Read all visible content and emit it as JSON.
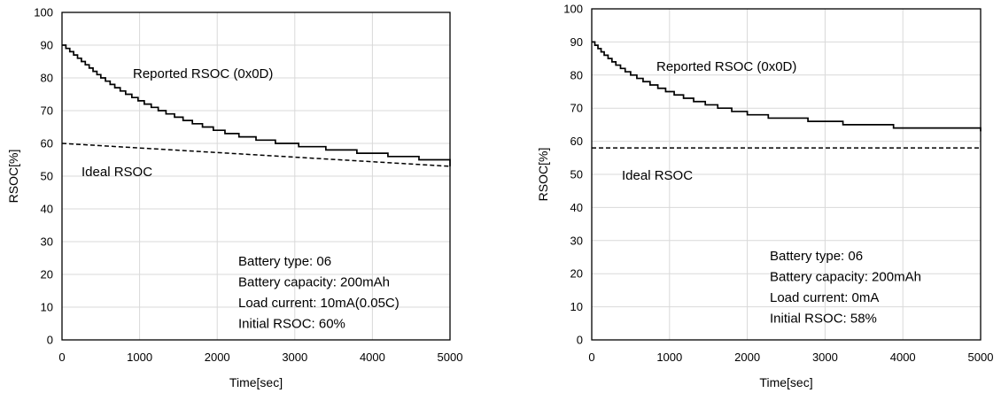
{
  "chart_data": [
    {
      "type": "line",
      "xlabel": "Time[sec]",
      "ylabel": "RSOC[%]",
      "xlim": [
        0,
        5000
      ],
      "ylim": [
        0,
        100
      ],
      "xticks": [
        0,
        1000,
        2000,
        3000,
        4000,
        5000
      ],
      "yticks": [
        0,
        10,
        20,
        30,
        40,
        50,
        60,
        70,
        80,
        90,
        100
      ],
      "grid": true,
      "series": [
        {
          "name": "Reported RSOC (0x0D)",
          "style": "solid-step",
          "x": [
            0,
            50,
            100,
            150,
            200,
            250,
            300,
            350,
            400,
            450,
            500,
            560,
            620,
            680,
            750,
            820,
            900,
            980,
            1060,
            1150,
            1240,
            1340,
            1450,
            1560,
            1680,
            1810,
            1950,
            2100,
            2280,
            2500,
            2750,
            3050,
            3400,
            3800,
            4200,
            4600,
            5000
          ],
          "y": [
            90,
            89,
            88,
            87,
            86,
            85,
            84,
            83,
            82,
            81,
            80,
            79,
            78,
            77,
            76,
            75,
            74,
            73,
            72,
            71,
            70,
            69,
            68,
            67,
            66,
            65,
            64,
            63,
            62,
            61,
            60,
            59,
            58,
            57,
            56,
            55,
            53
          ]
        },
        {
          "name": "Ideal RSOC",
          "style": "dashed",
          "x": [
            0,
            5000
          ],
          "y": [
            60,
            53
          ]
        }
      ],
      "annotations": {
        "reported_label": "Reported RSOC (0x0D)",
        "ideal_label": "Ideal RSOC",
        "info": [
          "Battery type: 06",
          "Battery capacity: 200mAh",
          "Load current: 10mA(0.05C)",
          "Initial RSOC: 60%"
        ]
      }
    },
    {
      "type": "line",
      "xlabel": "Time[sec]",
      "ylabel": "RSOC[%]",
      "xlim": [
        0,
        5000
      ],
      "ylim": [
        0,
        100
      ],
      "xticks": [
        0,
        1000,
        2000,
        3000,
        4000,
        5000
      ],
      "yticks": [
        0,
        10,
        20,
        30,
        40,
        50,
        60,
        70,
        80,
        90,
        100
      ],
      "grid": true,
      "series": [
        {
          "name": "Reported RSOC (0x0D)",
          "style": "solid-step",
          "x": [
            0,
            40,
            80,
            120,
            160,
            210,
            260,
            310,
            370,
            430,
            500,
            580,
            660,
            750,
            850,
            950,
            1060,
            1180,
            1310,
            1460,
            1620,
            1800,
            2000,
            2270,
            2780,
            3230,
            3880,
            5000
          ],
          "y": [
            90,
            89,
            88,
            87,
            86,
            85,
            84,
            83,
            82,
            81,
            80,
            79,
            78,
            77,
            76,
            75,
            74,
            73,
            72,
            71,
            70,
            69,
            68,
            67,
            66,
            65,
            64,
            63
          ]
        },
        {
          "name": "Ideal RSOC",
          "style": "dashed",
          "x": [
            0,
            5000
          ],
          "y": [
            58,
            58
          ]
        }
      ],
      "annotations": {
        "reported_label": "Reported RSOC (0x0D)",
        "ideal_label": "Ideal RSOC",
        "info": [
          "Battery type: 06",
          "Battery capacity: 200mAh",
          "Load current: 0mA",
          "Initial RSOC: 58%"
        ]
      }
    }
  ]
}
